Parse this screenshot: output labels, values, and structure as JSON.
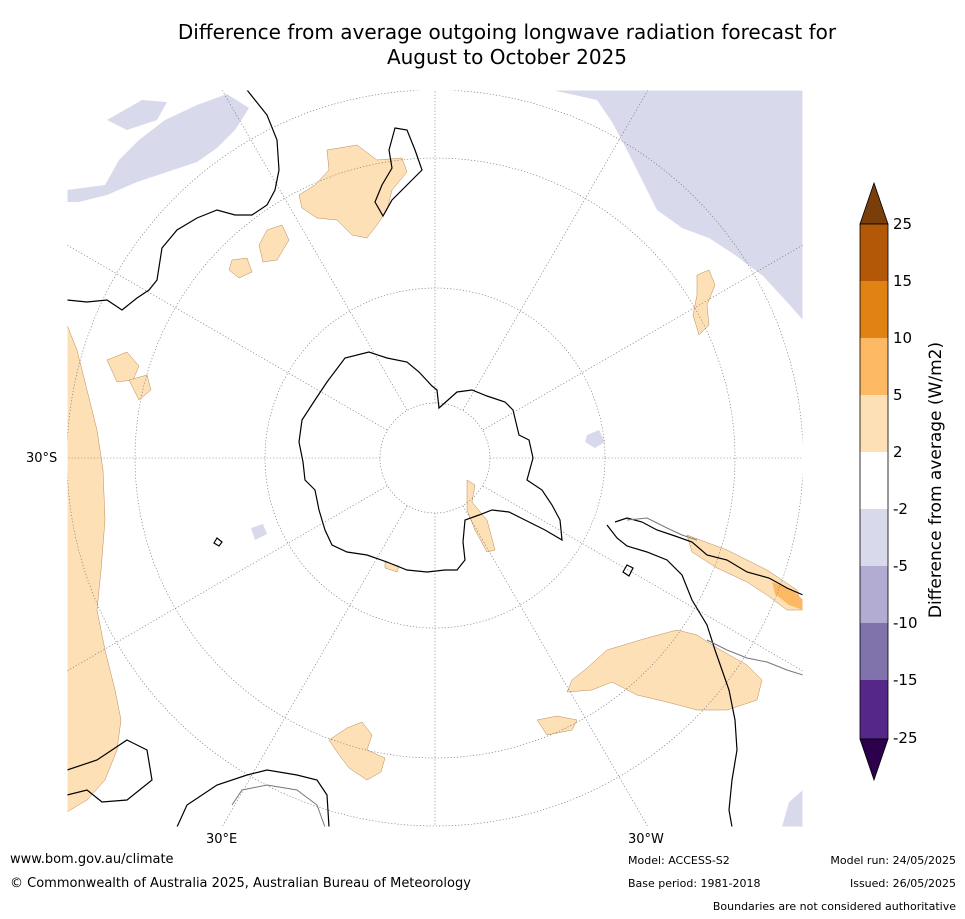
{
  "title_line1": "Difference from average outgoing longwave radiation forecast for",
  "title_line2": "August to October 2025",
  "map": {
    "projection": "south-polar stereographic",
    "lat_label": "30°S",
    "lon_labels": {
      "east": "30°E",
      "west": "30°W"
    }
  },
  "colorbar": {
    "label": "Difference from average (W/m2)",
    "ticks": [
      "25",
      "15",
      "10",
      "5",
      "2",
      "-2",
      "-5",
      "-10",
      "-15",
      "-25"
    ],
    "colors": [
      "#7a3e0a",
      "#b35806",
      "#e08214",
      "#fdb863",
      "#fee0b6",
      "#ffffff",
      "#d8daeb",
      "#b2abd2",
      "#8073ac",
      "#542788",
      "#2d004b"
    ]
  },
  "footer": {
    "website": "www.bom.gov.au/climate",
    "copyright": "© Commonwealth of Australia 2025, Australian Bureau of Meteorology",
    "model": "Model: ACCESS-S2",
    "base_period": "Base period: 1981-2018",
    "model_run": "Model run: 24/05/2025",
    "issued": "Issued: 26/05/2025",
    "disclaimer": "Boundaries are not considered authoritative"
  }
}
